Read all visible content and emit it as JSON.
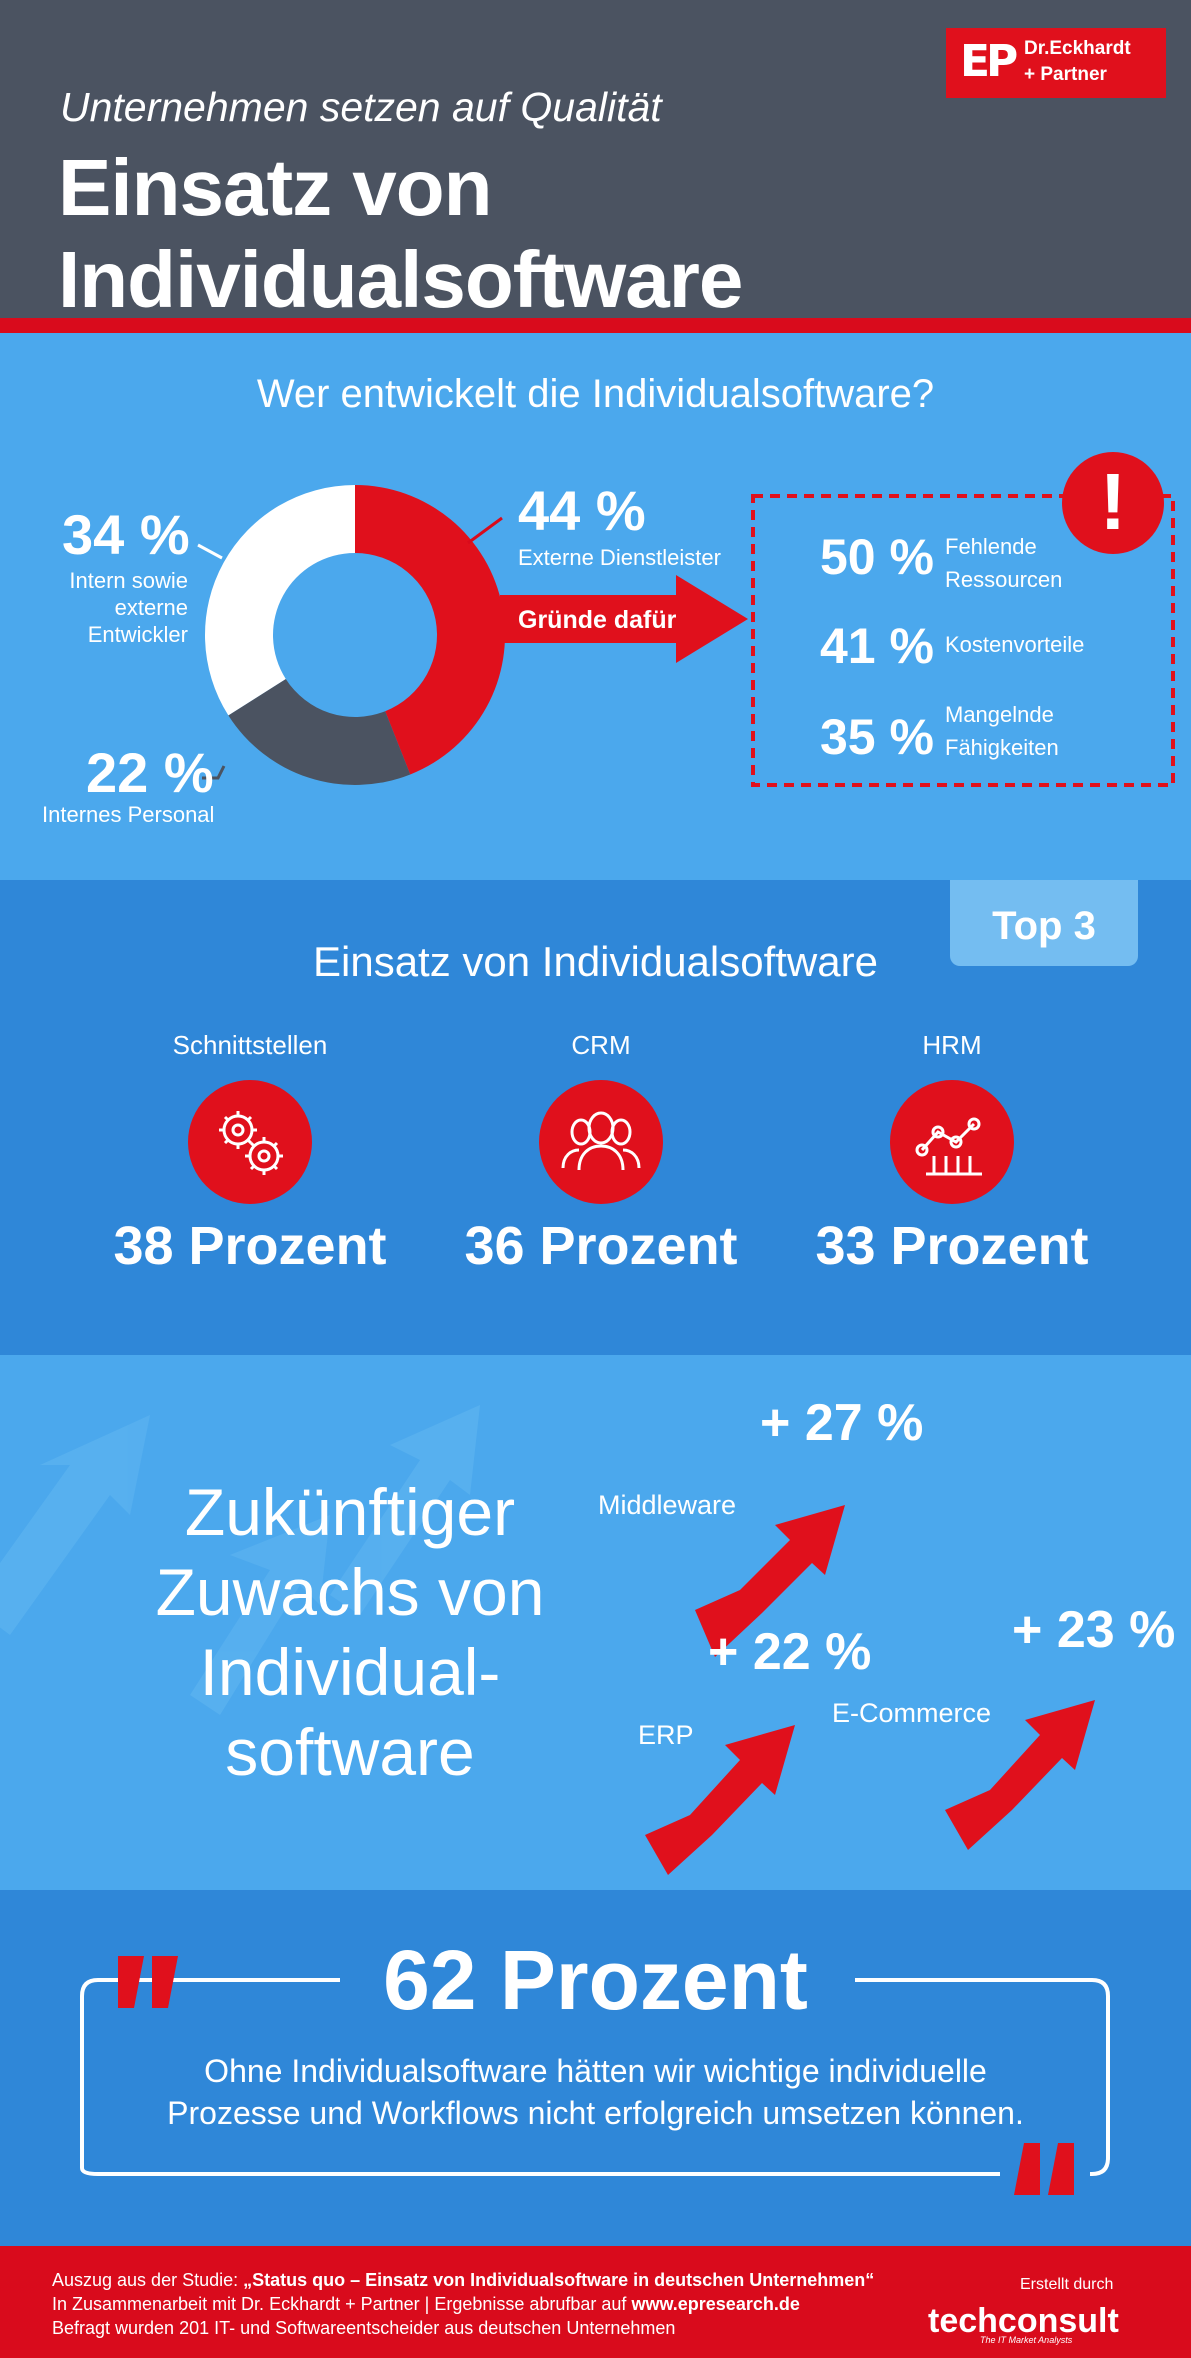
{
  "header": {
    "subtitle": "Unternehmen setzen auf Qualität",
    "title": "Einsatz von Individualsoftware",
    "logo_mark": "EP",
    "logo_line1": "Dr.Eckhardt",
    "logo_line2": "+ Partner"
  },
  "colors": {
    "red": "#e0101c",
    "blue_light": "#4ba8ed",
    "blue_dark": "#2f87d8",
    "slate": "#4b5361"
  },
  "developers": {
    "question": "Wer entwickelt die Individualsoftware?",
    "chart_data": {
      "type": "pie",
      "slices": [
        {
          "label": "Externe Dienstleister",
          "value": 44,
          "color": "#e0101c"
        },
        {
          "label": "Internes Personal",
          "value": 22,
          "color": "#4b5361"
        },
        {
          "label": "Intern sowie externe Entwickler",
          "value": 34,
          "color": "#ffffff"
        }
      ]
    },
    "external": {
      "pct": "44 %",
      "label": "Externe Dienstleister"
    },
    "mixed": {
      "pct": "34 %",
      "label1": "Intern sowie",
      "label2": "externe",
      "label3": "Entwickler"
    },
    "internal": {
      "pct": "22 %",
      "label": "Internes Personal"
    },
    "reasons_arrow": "Gründe dafür",
    "reasons": [
      {
        "pct": "50 %",
        "line1": "Fehlende",
        "line2": "Ressourcen"
      },
      {
        "pct": "41 %",
        "line1": "Kostenvorteile",
        "line2": ""
      },
      {
        "pct": "35 %",
        "line1": "Mangelnde",
        "line2": "Fähigkeiten"
      }
    ],
    "alert_icon": "exclamation-icon"
  },
  "top3": {
    "badge": "Top 3",
    "title": "Einsatz von Individualsoftware",
    "items": [
      {
        "label": "Schnittstellen",
        "value": "38 Prozent",
        "icon": "gears-icon"
      },
      {
        "label": "CRM",
        "value": "36 Prozent",
        "icon": "people-icon"
      },
      {
        "label": "HRM",
        "value": "33 Prozent",
        "icon": "network-icon"
      }
    ]
  },
  "growth": {
    "title_lines": [
      "Zukünftiger",
      "Zuwachs von",
      "Individual-",
      "software"
    ],
    "items": [
      {
        "label": "Middleware",
        "pct": "+ 27 %"
      },
      {
        "label": "ERP",
        "pct": "+ 22 %"
      },
      {
        "label": "E-Commerce",
        "pct": "+ 23 %"
      }
    ]
  },
  "quote": {
    "headline": "62 Prozent",
    "line1": "Ohne Individualsoftware hätten wir wichtige individuelle",
    "line2": "Prozesse und Workflows nicht erfolgreich umsetzen können."
  },
  "footer": {
    "line1_prefix": "Auszug aus der Studie: ",
    "line1_study": "„Status quo – Einsatz von Individualsoftware in deutschen Unternehmen“",
    "line2_prefix": "In Zusammenarbeit mit Dr. Eckhardt + Partner | Ergebnisse abrufbar auf ",
    "line2_url": "www.epresearch.de",
    "line3": "Befragt wurden 201 IT- und Softwareentscheider aus deutschen Unternehmen",
    "created_by": "Erstellt durch",
    "brand": "techconsult",
    "brand_sub": "The IT Market Analysts"
  }
}
